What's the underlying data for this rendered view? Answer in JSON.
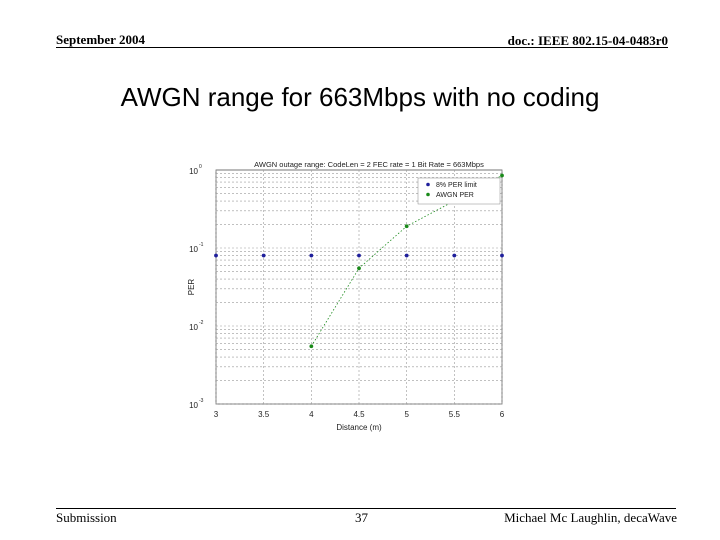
{
  "header": {
    "date": "September 2004",
    "doc_id": "doc.: IEEE 802.15-04-0483r0"
  },
  "slide": {
    "title": "AWGN range for 663Mbps with no coding"
  },
  "footer": {
    "left": "Submission",
    "page": "37",
    "author": "Michael Mc Laughlin, decaWave"
  },
  "chart_data": {
    "type": "scatter",
    "title": "AWGN outage range: CodeLen = 2 FEC rate = 1 Bit Rate = 663Mbps",
    "xlabel": "Distance (m)",
    "ylabel": "PER",
    "xlim": [
      3,
      6
    ],
    "ylim": [
      0.001,
      1
    ],
    "yscale": "log",
    "grid": true,
    "legend_position": "top-right",
    "x_ticks": [
      "3",
      "3.5",
      "4",
      "4.5",
      "5",
      "5.5",
      "6"
    ],
    "y_ticks": [
      {
        "base": "10",
        "exp": "0"
      },
      {
        "base": "10",
        "exp": "-1"
      },
      {
        "base": "10",
        "exp": "-2"
      },
      {
        "base": "10",
        "exp": "-3"
      }
    ],
    "series": [
      {
        "name": "8% PER limit",
        "color": "#1f1f9c",
        "style": "markers",
        "x": [
          3,
          3.5,
          4,
          4.5,
          5,
          5.5,
          6
        ],
        "y": [
          0.08,
          0.08,
          0.08,
          0.08,
          0.08,
          0.08,
          0.08
        ]
      },
      {
        "name": "AWGN PER",
        "color": "#1a8a1a",
        "style": "dotted-line-markers",
        "x": [
          4,
          4.5,
          5,
          6
        ],
        "y": [
          0.0055,
          0.055,
          0.19,
          0.85
        ]
      }
    ]
  }
}
